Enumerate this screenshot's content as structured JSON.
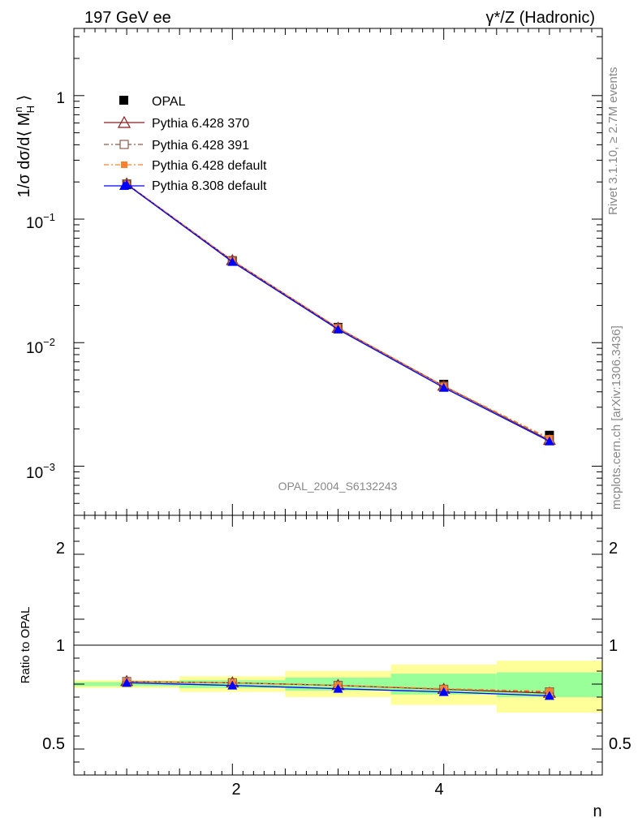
{
  "header": {
    "left_title": "197 GeV ee",
    "right_title": "γ*/Z (Hadronic)"
  },
  "side_notes": {
    "rivet": "Rivet 3.1.10, ≥ 2.7M events",
    "mcplots": "mcplots.cern.ch [arXiv:1306.3436]"
  },
  "watermark": "OPAL_2004_S6132243",
  "main_axis": {
    "ylabel_parts": [
      "1/σ dσ/d⟨ M",
      "n",
      "H",
      " ⟩"
    ],
    "y_ticks": [
      {
        "value": 1,
        "base": "1",
        "exp": ""
      },
      {
        "value": 0.1,
        "base": "10",
        "exp": "−1"
      },
      {
        "value": 0.01,
        "base": "10",
        "exp": "−2"
      },
      {
        "value": 0.001,
        "base": "10",
        "exp": "−3"
      }
    ]
  },
  "ratio_axis": {
    "ylabel": "Ratio to OPAL",
    "y_ticks": [
      "2",
      "1",
      "0.5"
    ],
    "x_ticks": [
      "2",
      "4"
    ],
    "xlabel": "n"
  },
  "colors": {
    "opal": "#000000",
    "p370": "#8b1a1a",
    "p391": "#8b5a4a",
    "pdef": "#ff7f2a",
    "p8": "#0000ff",
    "band_yellow": "#ffff99",
    "band_green": "#99ff99"
  },
  "chart_data": [
    {
      "type": "line",
      "title": "197 GeV ee",
      "xlabel": "",
      "ylabel": "1/σ dσ/d⟨ M^n_H ⟩",
      "xlim": [
        0.5,
        5.5
      ],
      "ylim": [
        0.0004,
        3.5
      ],
      "yscale": "log",
      "legend": "top-left",
      "x": [
        1,
        2,
        3,
        4,
        5
      ],
      "data": {
        "name": "OPAL",
        "values": [
          0.19,
          0.046,
          0.0133,
          0.0046,
          0.00178
        ]
      },
      "series": [
        {
          "name": "Pythia 6.428 370",
          "key": "p370",
          "values": [
            0.193,
            0.0462,
            0.0131,
            0.00445,
            0.00162
          ]
        },
        {
          "name": "Pythia 6.428 391",
          "key": "p391",
          "values": [
            0.193,
            0.0461,
            0.0131,
            0.00443,
            0.00164
          ]
        },
        {
          "name": "Pythia 6.428 default",
          "key": "pdef",
          "values": [
            0.193,
            0.0462,
            0.0132,
            0.00446,
            0.00168
          ]
        },
        {
          "name": "Pythia 8.308 default",
          "key": "p8",
          "values": [
            0.191,
            0.0451,
            0.0128,
            0.00432,
            0.00159
          ]
        }
      ]
    },
    {
      "type": "line",
      "title": "",
      "xlabel": "n",
      "ylabel": "Ratio to OPAL",
      "xlim": [
        0.5,
        5.5
      ],
      "ylim": [
        0.3,
        2.3
      ],
      "x": [
        1,
        2,
        3,
        4,
        5
      ],
      "bands": {
        "yellow": [
          [
            0.97,
            1.03
          ],
          [
            0.94,
            1.06
          ],
          [
            0.9,
            1.1
          ],
          [
            0.84,
            1.15
          ],
          [
            0.78,
            1.18
          ]
        ],
        "green": [
          [
            0.985,
            1.015
          ],
          [
            0.97,
            1.03
          ],
          [
            0.95,
            1.05
          ],
          [
            0.92,
            1.08
          ],
          [
            0.9,
            1.09
          ]
        ]
      },
      "series": [
        {
          "name": "Pythia 6.428 370",
          "key": "p370",
          "values": [
            1.02,
            1.01,
            0.99,
            0.96,
            0.93
          ]
        },
        {
          "name": "Pythia 6.428 391",
          "key": "p391",
          "values": [
            1.02,
            1.01,
            0.99,
            0.96,
            0.94
          ]
        },
        {
          "name": "Pythia 6.428 default",
          "key": "pdef",
          "values": [
            1.02,
            1.01,
            0.99,
            0.965,
            0.945
          ]
        },
        {
          "name": "Pythia 8.308 default",
          "key": "p8",
          "values": [
            1.01,
            0.99,
            0.965,
            0.94,
            0.91
          ]
        }
      ]
    }
  ]
}
